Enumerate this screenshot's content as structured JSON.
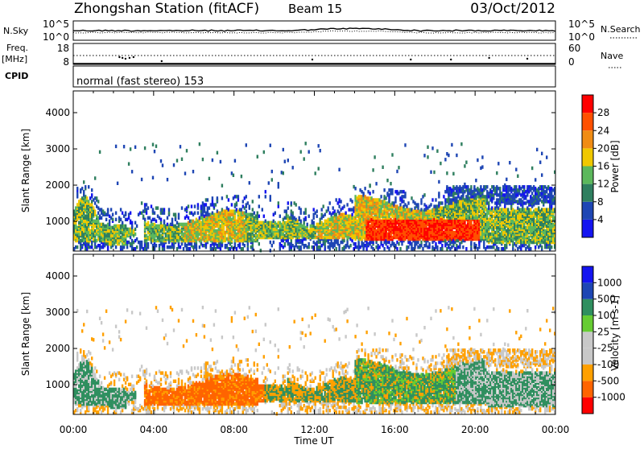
{
  "header": {
    "station": "Zhongshan Station (fitACF)",
    "beam": "Beam 15",
    "date": "03/Oct/2012"
  },
  "left_labels": {
    "nsky": "N.Sky",
    "freq": "Freq.",
    "freq_unit": "[MHz]",
    "cpid": "CPID"
  },
  "right_labels": {
    "nsearch": "N.Search",
    "nave": "Nave"
  },
  "cpid_text": "normal (fast stereo) 153",
  "colors": {
    "power": [
      "#1414f0",
      "#1e46b4",
      "#2f7f5f",
      "#5cb85c",
      "#f0c800",
      "#f08c14",
      "#ff5000",
      "#ff0000"
    ],
    "velocity": [
      "#ff0000",
      "#ff6400",
      "#ffa000",
      "#c8c8c8",
      "#c8c8c8",
      "#66cc33",
      "#2f8f5f",
      "#1e46b4",
      "#1414f0"
    ]
  },
  "chart_data": [
    {
      "type": "line",
      "name": "noise",
      "series": [
        {
          "name": "N.Sky"
        },
        {
          "name": "N.Search"
        }
      ],
      "left_ticks": [
        "10^5",
        "10^0"
      ],
      "right_ticks": [
        "10^5",
        "10^0"
      ]
    },
    {
      "type": "line",
      "name": "frequency",
      "series": [
        {
          "name": "Freq."
        },
        {
          "name": "Nave"
        }
      ],
      "left_ticks": [
        18,
        8
      ],
      "right_ticks": [
        60,
        0
      ],
      "freq_mhz": 12
    },
    {
      "type": "heatmap",
      "name": "power",
      "ylabel": "Slant Range [km]",
      "yticks": [
        1000,
        2000,
        3000,
        4000
      ],
      "ylim": [
        180,
        4600
      ],
      "colorbar_label": "Power [dB]",
      "colorbar_ticks": [
        4,
        8,
        12,
        16,
        20,
        24,
        28
      ],
      "colorbar_range": [
        0,
        32
      ]
    },
    {
      "type": "heatmap",
      "name": "velocity",
      "ylabel": "Slant Range [km]",
      "yticks": [
        1000,
        2000,
        3000,
        4000
      ],
      "ylim": [
        180,
        4600
      ],
      "colorbar_label": "Velocity [m s-1]",
      "colorbar_ticks": [
        1000,
        500,
        100,
        25,
        -25,
        -100,
        -500,
        -1000
      ],
      "xlabel": "Time UT",
      "xticks": [
        "00:00",
        "04:00",
        "08:00",
        "12:00",
        "16:00",
        "20:00",
        "00:00"
      ],
      "xlim_hours": [
        0,
        24
      ]
    }
  ]
}
